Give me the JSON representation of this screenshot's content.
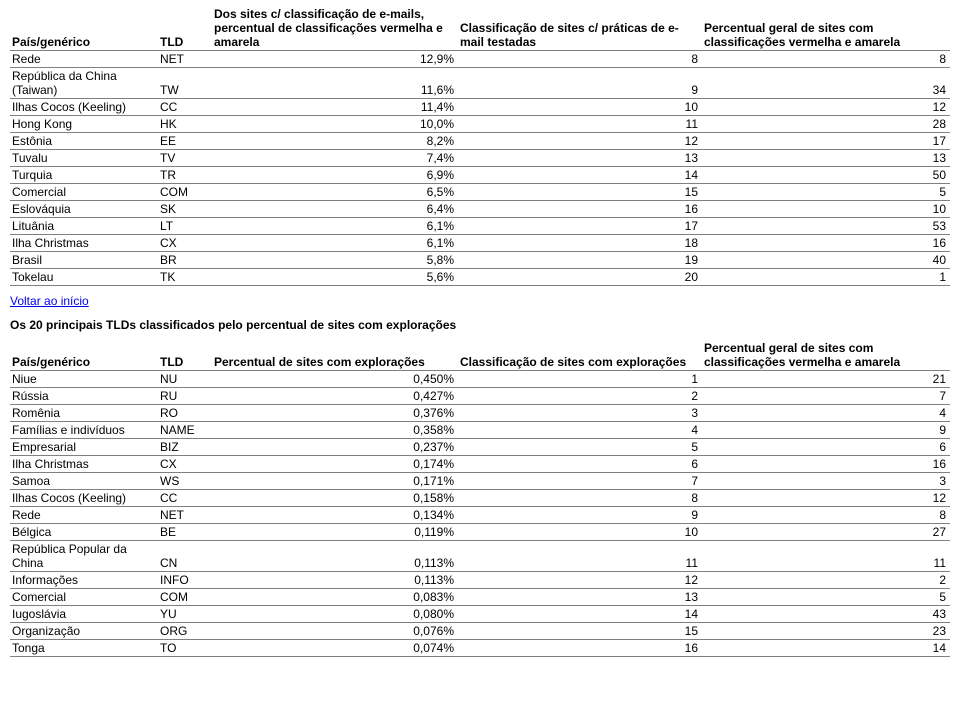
{
  "table1": {
    "headers": {
      "h1": "País/genérico",
      "h2": "TLD",
      "h3": "Dos sites c/ classificação de e-mails, percentual de classificações vermelha e amarela",
      "h4": "Classificação de sites c/ práticas de e-mail testadas",
      "h5": "Percentual geral de sites com classificações vermelha e amarela"
    },
    "rows": [
      {
        "c": "Rede",
        "t": "NET",
        "p": "12,9%",
        "r": "8",
        "g": "8"
      },
      {
        "c": "República da China (Taiwan)",
        "t": "TW",
        "p": "11,6%",
        "r": "9",
        "g": "34"
      },
      {
        "c": "Ilhas Cocos (Keeling)",
        "t": "CC",
        "p": "11,4%",
        "r": "10",
        "g": "12"
      },
      {
        "c": "Hong Kong",
        "t": "HK",
        "p": "10,0%",
        "r": "11",
        "g": "28"
      },
      {
        "c": "Estônia",
        "t": "EE",
        "p": "8,2%",
        "r": "12",
        "g": "17"
      },
      {
        "c": "Tuvalu",
        "t": "TV",
        "p": "7,4%",
        "r": "13",
        "g": "13"
      },
      {
        "c": "Turquia",
        "t": "TR",
        "p": "6,9%",
        "r": "14",
        "g": "50"
      },
      {
        "c": "Comercial",
        "t": "COM",
        "p": "6,5%",
        "r": "15",
        "g": "5"
      },
      {
        "c": "Eslováquia",
        "t": "SK",
        "p": "6,4%",
        "r": "16",
        "g": "10"
      },
      {
        "c": "Lituânia",
        "t": "LT",
        "p": "6,1%",
        "r": "17",
        "g": "53"
      },
      {
        "c": "Ilha Christmas",
        "t": "CX",
        "p": "6,1%",
        "r": "18",
        "g": "16"
      },
      {
        "c": "Brasil",
        "t": "BR",
        "p": "5,8%",
        "r": "19",
        "g": "40"
      },
      {
        "c": "Tokelau",
        "t": "TK",
        "p": "5,6%",
        "r": "20",
        "g": "1"
      }
    ]
  },
  "back_link": "Voltar ao início",
  "subtitle": "Os 20 principais TLDs classificados pelo percentual de sites com explorações",
  "table2": {
    "headers": {
      "h1": "País/genérico",
      "h2": "TLD",
      "h3": "Percentual de sites com explorações",
      "h4": "Classificação de sites com explorações",
      "h5": "Percentual geral de sites com classificações vermelha e amarela"
    },
    "rows": [
      {
        "c": "Niue",
        "t": "NU",
        "p": "0,450%",
        "r": "1",
        "g": "21"
      },
      {
        "c": "Rússia",
        "t": "RU",
        "p": "0,427%",
        "r": "2",
        "g": "7"
      },
      {
        "c": "Romênia",
        "t": "RO",
        "p": "0,376%",
        "r": "3",
        "g": "4"
      },
      {
        "c": "Famílias e indivíduos",
        "t": "NAME",
        "p": "0,358%",
        "r": "4",
        "g": "9"
      },
      {
        "c": "Empresarial",
        "t": "BIZ",
        "p": "0,237%",
        "r": "5",
        "g": "6"
      },
      {
        "c": "Ilha Christmas",
        "t": "CX",
        "p": "0,174%",
        "r": "6",
        "g": "16"
      },
      {
        "c": "Samoa",
        "t": "WS",
        "p": "0,171%",
        "r": "7",
        "g": "3"
      },
      {
        "c": "Ilhas Cocos (Keeling)",
        "t": "CC",
        "p": "0,158%",
        "r": "8",
        "g": "12"
      },
      {
        "c": "Rede",
        "t": "NET",
        "p": "0,134%",
        "r": "9",
        "g": "8"
      },
      {
        "c": "Bélgica",
        "t": "BE",
        "p": "0,119%",
        "r": "10",
        "g": "27"
      },
      {
        "c": "República Popular da China",
        "t": "CN",
        "p": "0,113%",
        "r": "11",
        "g": "11"
      },
      {
        "c": "Informações",
        "t": "INFO",
        "p": "0,113%",
        "r": "12",
        "g": "2"
      },
      {
        "c": "Comercial",
        "t": "COM",
        "p": "0,083%",
        "r": "13",
        "g": "5"
      },
      {
        "c": "Iugoslávia",
        "t": "YU",
        "p": "0,080%",
        "r": "14",
        "g": "43"
      },
      {
        "c": "Organização",
        "t": "ORG",
        "p": "0,076%",
        "r": "15",
        "g": "23"
      },
      {
        "c": "Tonga",
        "t": "TO",
        "p": "0,074%",
        "r": "16",
        "g": "14"
      }
    ]
  }
}
